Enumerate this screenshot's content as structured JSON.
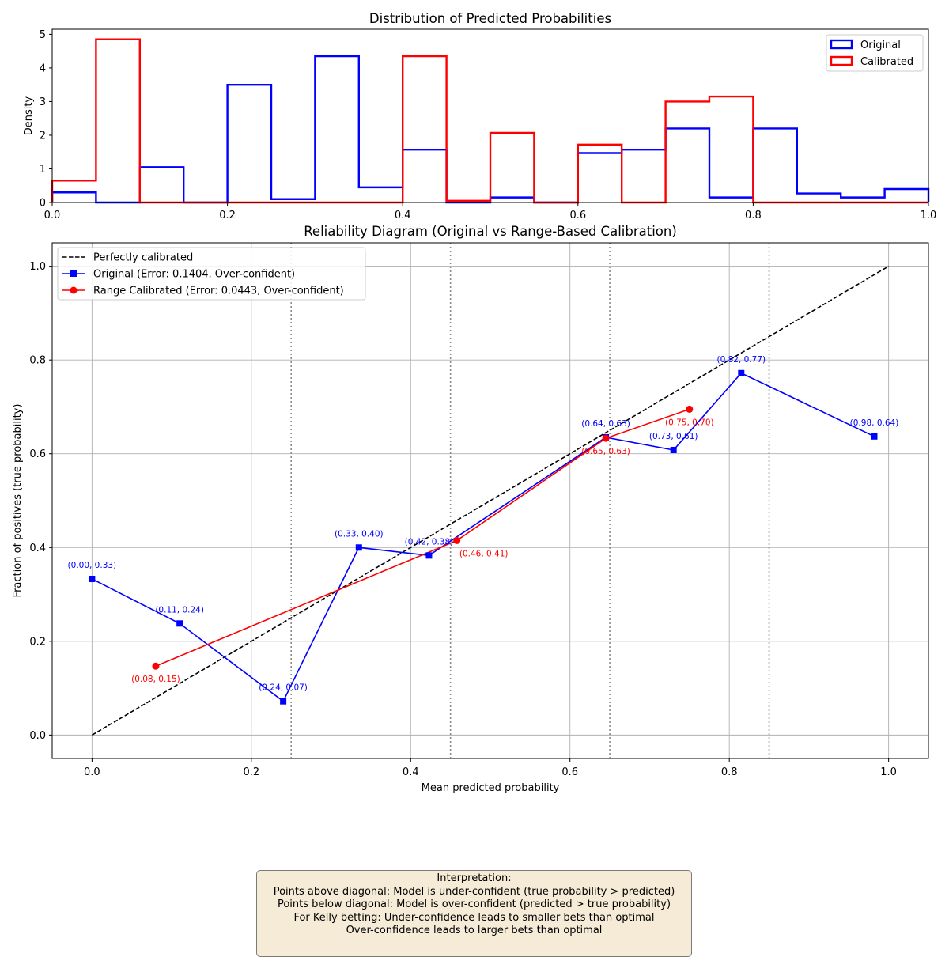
{
  "chart_data": [
    {
      "type": "histogram",
      "title": "Distribution of Predicted Probabilities",
      "xlabel": "",
      "ylabel": "Density",
      "xlim": [
        0,
        1
      ],
      "ylim": [
        0,
        5.15
      ],
      "xticks": [
        "0.0",
        "0.2",
        "0.4",
        "0.6",
        "0.8",
        "1.0"
      ],
      "yticks": [
        "0",
        "1",
        "2",
        "3",
        "4",
        "5"
      ],
      "legend_position": "top-right",
      "bin_edges": [
        0,
        0.05,
        0.1,
        0.15,
        0.2,
        0.25,
        0.3,
        0.35,
        0.4,
        0.45,
        0.5,
        0.55,
        0.6,
        0.65,
        0.7,
        0.75,
        0.8,
        0.85,
        0.9,
        0.95,
        1.0
      ],
      "series": [
        {
          "name": "Original",
          "color": "#0000ff",
          "values": [
            0.3,
            0.0,
            1.05,
            0.0,
            3.5,
            0.1,
            4.35,
            0.45,
            1.57,
            0.0,
            0.15,
            0.0,
            1.47,
            1.57,
            2.2,
            0.15,
            2.2,
            0.27,
            0.15,
            0.4
          ]
        },
        {
          "name": "Calibrated",
          "color": "#ff0000",
          "values": [
            0.65,
            4.85,
            0.0,
            0.0,
            0.0,
            0.0,
            0.0,
            0.0,
            4.35,
            0.05,
            2.07,
            0.0,
            1.72,
            0.0,
            3.0,
            3.15,
            0.0,
            0.0,
            0.0,
            0.0
          ]
        }
      ]
    },
    {
      "type": "line",
      "title": "Reliability Diagram (Original vs Range-Based Calibration)",
      "xlabel": "Mean predicted probability",
      "ylabel": "Fraction of positives (true probability)",
      "xlim": [
        -0.05,
        1.05
      ],
      "ylim": [
        -0.05,
        1.05
      ],
      "xticks": [
        "0.0",
        "0.2",
        "0.4",
        "0.6",
        "0.8",
        "1.0"
      ],
      "yticks": [
        "0.0",
        "0.2",
        "0.4",
        "0.6",
        "0.8",
        "1.0"
      ],
      "grid": true,
      "legend_position": "top-left",
      "vlines": [
        0.25,
        0.45,
        0.65,
        0.85
      ],
      "series": [
        {
          "name": "Perfectly calibrated",
          "color": "#000000",
          "style": "dashed",
          "x": [
            0,
            1
          ],
          "y": [
            0,
            1
          ],
          "labels": []
        },
        {
          "name": "Original (Error: 0.1404, Over-confident)",
          "color": "#0000ff",
          "marker": "square",
          "x": [
            0.0,
            0.11,
            0.24,
            0.335,
            0.423,
            0.645,
            0.73,
            0.815,
            0.982
          ],
          "y": [
            0.333,
            0.238,
            0.072,
            0.4,
            0.383,
            0.635,
            0.608,
            0.772,
            0.637
          ],
          "labels": [
            "(0.00, 0.33)",
            "(0.11, 0.24)",
            "(0.24, 0.07)",
            "(0.33, 0.40)",
            "(0.42, 0.38)",
            "(0.64, 0.63)",
            "(0.73, 0.61)",
            "(0.82, 0.77)",
            "(0.98, 0.64)"
          ]
        },
        {
          "name": "Range Calibrated (Error: 0.0443, Over-confident)",
          "color": "#ff0000",
          "marker": "circle",
          "x": [
            0.08,
            0.458,
            0.645,
            0.75
          ],
          "y": [
            0.147,
            0.415,
            0.633,
            0.695
          ],
          "labels": [
            "(0.08, 0.15)",
            "(0.46, 0.41)",
            "(0.65, 0.63)",
            "(0.75, 0.70)"
          ]
        }
      ]
    }
  ],
  "interpretation": {
    "lines": [
      "Interpretation:",
      "Points above diagonal: Model is under-confident (true probability > predicted)",
      "Points below diagonal: Model is over-confident (predicted > true probability)",
      "For Kelly betting: Under-confidence leads to smaller bets than optimal",
      "Over-confidence leads to larger bets than optimal"
    ]
  }
}
